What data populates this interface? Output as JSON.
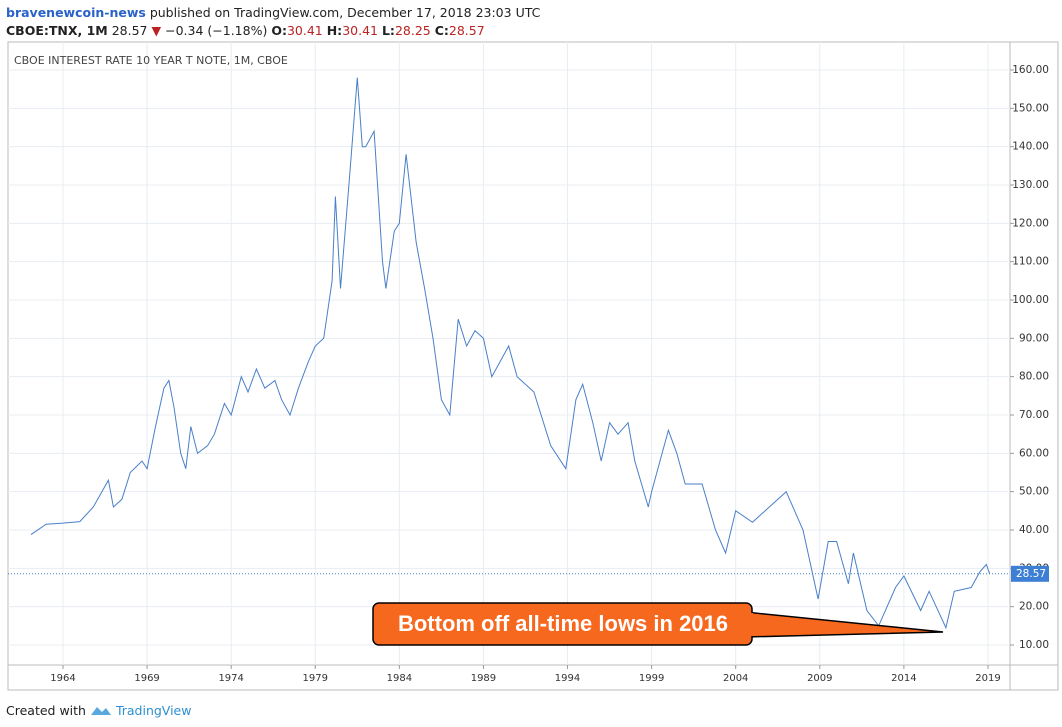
{
  "header": {
    "author": "bravenewcoin-news",
    "published": "published on TradingView.com, December 17, 2018 23:03 UTC",
    "symbol": "CBOE:TNX, 1M",
    "price": "28.57",
    "arrow": "▼",
    "change": "−0.34 (−1.18%)",
    "open_label": "O:",
    "open": "30.41",
    "high_label": "H:",
    "high": "30.41",
    "low_label": "L:",
    "low": "28.25",
    "close_label": "C:",
    "close": "28.57"
  },
  "footer": {
    "created": "Created with",
    "brand": "TradingView"
  },
  "chart_data": {
    "type": "line",
    "title": "CBOE INTEREST RATE 10 YEAR T NOTE, 1M, CBOE",
    "annotation": "Bottom off all-time lows in 2016",
    "color": "#4a7fc9",
    "grid": true,
    "last_price": {
      "value": 28.57,
      "label": "28.57"
    },
    "xlim": [
      1960.73,
      2020.31
    ],
    "ylim": [
      4.78,
      167.3
    ],
    "xticks": [
      1964,
      1969,
      1974,
      1979,
      1984,
      1989,
      1994,
      1999,
      2004,
      2009,
      2014,
      2019
    ],
    "yticks": [
      {
        "value": 10,
        "label": "10.00"
      },
      {
        "value": 20,
        "label": "20.00"
      },
      {
        "value": 30,
        "label": "30.00"
      },
      {
        "value": 40,
        "label": "40.00"
      },
      {
        "value": 50,
        "label": "50.00"
      },
      {
        "value": 60,
        "label": "60.00"
      },
      {
        "value": 70,
        "label": "70.00"
      },
      {
        "value": 80,
        "label": "80.00"
      },
      {
        "value": 90,
        "label": "90.00"
      },
      {
        "value": 100,
        "label": "100.00"
      },
      {
        "value": 110,
        "label": "110.00"
      },
      {
        "value": 120,
        "label": "120.00"
      },
      {
        "value": 130,
        "label": "130.00"
      },
      {
        "value": 140,
        "label": "140.00"
      },
      {
        "value": 150,
        "label": "150.00"
      },
      {
        "value": 160,
        "label": "160.00"
      }
    ],
    "x": [
      1962.1,
      1963,
      1964,
      1965,
      1965.8,
      1966.7,
      1967,
      1967.5,
      1968,
      1968.7,
      1969,
      1969.5,
      1970,
      1970.3,
      1970.6,
      1971,
      1971.3,
      1971.6,
      1972,
      1972.6,
      1973,
      1973.6,
      1974,
      1974.6,
      1975,
      1975.5,
      1976,
      1976.6,
      1977,
      1977.5,
      1978,
      1978.6,
      1979,
      1979.5,
      1980,
      1980.2,
      1980.5,
      1981,
      1981.5,
      1981.8,
      1982,
      1982.5,
      1983,
      1983.2,
      1983.7,
      1984,
      1984.4,
      1985,
      1985.5,
      1986,
      1986.5,
      1987,
      1987.5,
      1988,
      1988.5,
      1989,
      1989.5,
      1990,
      1990.5,
      1991,
      1992,
      1993,
      1993.9,
      1994.5,
      1994.9,
      1995.5,
      1996,
      1996.5,
      1997,
      1997.6,
      1998,
      1998.8,
      1999,
      2000,
      2000.5,
      2001,
      2002,
      2002.8,
      2003.4,
      2004,
      2005,
      2006,
      2007,
      2007.5,
      2008,
      2008.9,
      2009.5,
      2010,
      2010.7,
      2011,
      2011.8,
      2012.5,
      2013.5,
      2014,
      2015,
      2015.5,
      2016.5,
      2017,
      2018,
      2018.5,
      2018.9,
      2019.1
    ],
    "values": [
      38.8,
      41.5,
      41.8,
      42.2,
      46,
      53,
      46,
      48,
      55,
      58,
      56,
      67,
      77,
      79,
      72,
      60,
      56,
      67,
      60,
      62,
      65,
      73,
      70,
      80,
      76,
      82,
      77,
      79,
      74,
      70,
      77,
      84,
      88,
      90,
      105,
      127,
      103,
      130,
      158,
      140,
      140,
      144,
      110,
      103,
      118,
      120,
      138,
      115,
      103,
      90,
      74,
      70,
      95,
      88,
      92,
      90,
      80,
      84,
      88,
      80,
      76,
      62,
      56,
      74,
      78,
      68,
      58,
      68,
      65,
      68,
      58,
      46,
      50,
      66,
      60,
      52,
      52,
      40,
      34,
      45,
      42,
      46,
      50,
      45,
      40,
      22,
      37,
      37,
      26,
      34,
      19,
      15,
      25,
      28,
      19,
      24,
      14.5,
      24,
      25,
      29,
      31,
      28.57
    ]
  }
}
